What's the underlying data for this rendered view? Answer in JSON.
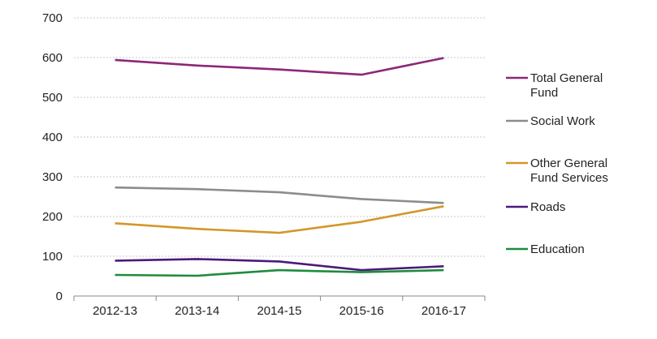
{
  "chart_data": {
    "type": "line",
    "categories": [
      "2012-13",
      "2013-14",
      "2014-15",
      "2015-16",
      "2016-17"
    ],
    "ylim": [
      0,
      700
    ],
    "yticks": [
      0,
      100,
      200,
      300,
      400,
      500,
      600,
      700
    ],
    "grid": true,
    "legend_position": "right",
    "series": [
      {
        "name": "Total General Fund",
        "legend_lines": [
          "Total General",
          "Fund"
        ],
        "color": "#8B2878",
        "values": [
          594,
          580,
          570,
          557,
          599
        ]
      },
      {
        "name": "Social Work",
        "legend_lines": [
          "Social Work"
        ],
        "color": "#8C8C8C",
        "values": [
          273,
          269,
          261,
          244,
          234
        ]
      },
      {
        "name": "Other General Fund Services",
        "legend_lines": [
          "Other General",
          "Fund Services"
        ],
        "color": "#D4962A",
        "values": [
          183,
          169,
          159,
          187,
          226
        ]
      },
      {
        "name": "Roads",
        "legend_lines": [
          "Roads"
        ],
        "color": "#4B1A7A",
        "values": [
          89,
          93,
          87,
          65,
          75
        ]
      },
      {
        "name": "Education",
        "legend_lines": [
          "Education"
        ],
        "color": "#1E8C3C",
        "values": [
          53,
          51,
          65,
          60,
          65
        ]
      }
    ]
  }
}
